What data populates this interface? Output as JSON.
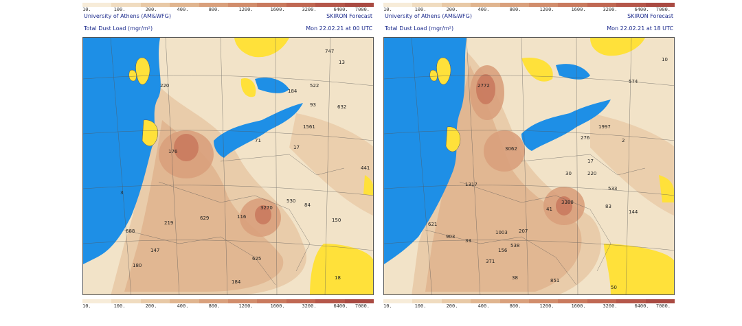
{
  "colorbar": {
    "labels": [
      "10.",
      "100.",
      "200.",
      "400.",
      "800.",
      "1200.",
      "1600.",
      "3200.",
      "6400.",
      "7000."
    ],
    "colors": [
      "#f7ecd9",
      "#f0dcc0",
      "#e8c9a6",
      "#e0b58f",
      "#d9a07c",
      "#d18d6c",
      "#c97a5e",
      "#c06853",
      "#b5574a",
      "#a94a42"
    ]
  },
  "panels": [
    {
      "institution": "University of Athens (AM&WFG)",
      "model": "SKIRON Forecast",
      "product": "Total Dust Load (mgr/m²)",
      "valid_time": "Mon 22.02.21 at 00 UTC",
      "values": [
        {
          "text": "747"
        },
        {
          "text": "220"
        },
        {
          "text": "13"
        },
        {
          "text": "522"
        },
        {
          "text": "93"
        },
        {
          "text": "632"
        },
        {
          "text": "184"
        },
        {
          "text": "1561"
        },
        {
          "text": "176"
        },
        {
          "text": "17"
        },
        {
          "text": "441"
        },
        {
          "text": "71"
        },
        {
          "text": "3"
        },
        {
          "text": "3270"
        },
        {
          "text": "530"
        },
        {
          "text": "629"
        },
        {
          "text": "116"
        },
        {
          "text": "219"
        },
        {
          "text": "84"
        },
        {
          "text": "150"
        },
        {
          "text": "688"
        },
        {
          "text": "147"
        },
        {
          "text": "625"
        },
        {
          "text": "180"
        },
        {
          "text": "184"
        },
        {
          "text": "18"
        }
      ]
    },
    {
      "institution": "University of Athens (AM&WFG)",
      "model": "SKIRON Forecast",
      "product": "Total Dust Load (mgr/m²)",
      "valid_time": "Mon 22.02.21 at 18 UTC",
      "values": [
        {
          "text": "10"
        },
        {
          "text": "2772"
        },
        {
          "text": "574"
        },
        {
          "text": "1997"
        },
        {
          "text": "276"
        },
        {
          "text": "2"
        },
        {
          "text": "3062"
        },
        {
          "text": "17"
        },
        {
          "text": "30"
        },
        {
          "text": "220"
        },
        {
          "text": "1317"
        },
        {
          "text": "533"
        },
        {
          "text": "3388"
        },
        {
          "text": "83"
        },
        {
          "text": "41"
        },
        {
          "text": "621"
        },
        {
          "text": "1003"
        },
        {
          "text": "207"
        },
        {
          "text": "144"
        },
        {
          "text": "903"
        },
        {
          "text": "33"
        },
        {
          "text": "538"
        },
        {
          "text": "156"
        },
        {
          "text": "371"
        },
        {
          "text": "38"
        },
        {
          "text": "851"
        },
        {
          "text": "50"
        }
      ]
    }
  ]
}
